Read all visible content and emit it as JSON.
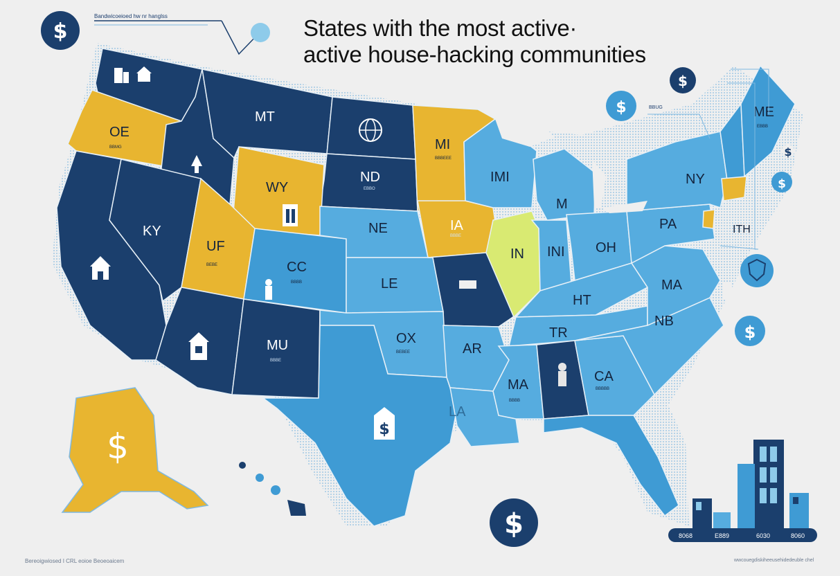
{
  "title": {
    "line1": "States with the most active·",
    "line2": "active house-hacking communities"
  },
  "captions": {
    "top_left": "Bandwicoeioed hw nr hanglss",
    "bottom_left": "Bereoigwiosed I CRL eoioe Beoeoaicem",
    "bottom_right": "wwcouegdiskiheeusehidedeuble chel",
    "ne_note": "BBUG"
  },
  "colors": {
    "background": "#efefef",
    "navy": "#1b3f6d",
    "medium_blue": "#3f9bd4",
    "light_blue": "#56acdf",
    "gold": "#e8b530",
    "lime": "#d9ea72",
    "coast_dots": "#7fb8e0"
  },
  "states": [
    {
      "label": "OE",
      "color": "gold"
    },
    {
      "label": "MT",
      "color": "navy"
    },
    {
      "label": "ND",
      "color": "navy"
    },
    {
      "label": "MI",
      "color": "gold"
    },
    {
      "label": "WY",
      "color": "gold"
    },
    {
      "label": "KY",
      "color": "navy"
    },
    {
      "label": "UF",
      "color": "gold"
    },
    {
      "label": "CC",
      "color": "medium_blue"
    },
    {
      "label": "NE",
      "color": "light_blue"
    },
    {
      "label": "LE",
      "color": "light_blue"
    },
    {
      "label": "IA",
      "color": "gold"
    },
    {
      "label": "IN",
      "color": "lime"
    },
    {
      "label": "IMI",
      "color": "light_blue"
    },
    {
      "label": "M",
      "color": "light_blue"
    },
    {
      "label": "NY",
      "color": "light_blue"
    },
    {
      "label": "ME",
      "color": "light_blue"
    },
    {
      "label": "PA",
      "color": "light_blue"
    },
    {
      "label": "OH",
      "color": "light_blue"
    },
    {
      "label": "INI",
      "color": "light_blue"
    },
    {
      "label": "HT",
      "color": "light_blue"
    },
    {
      "label": "MA",
      "color": "light_blue"
    },
    {
      "label": "TR",
      "color": "light_blue"
    },
    {
      "label": "NB",
      "color": "light_blue"
    },
    {
      "label": "MU",
      "color": "navy"
    },
    {
      "label": "OX",
      "color": "light_blue"
    },
    {
      "label": "AR",
      "color": "light_blue"
    },
    {
      "label": "MA",
      "color": "light_blue"
    },
    {
      "label": "CA",
      "color": "light_blue"
    },
    {
      "label": "LA",
      "color": "light_blue"
    },
    {
      "label": "ITH",
      "color": "light_blue"
    }
  ],
  "icons": {
    "dollar": "$",
    "names": [
      "dollar-icon",
      "house-icon",
      "globe-icon",
      "building-icon",
      "person-icon",
      "arrow-up-icon",
      "shield-icon"
    ]
  },
  "bar_labels": [
    "8068",
    "E889",
    "6030",
    "8060"
  ]
}
